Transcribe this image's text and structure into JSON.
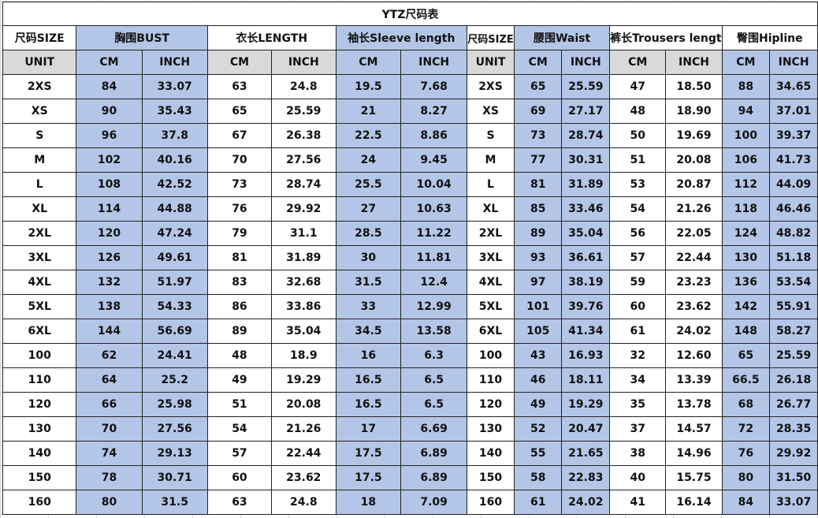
{
  "title": "YTZ尺码表",
  "headers": [
    "尺码SIZE",
    "胸围BUST",
    "衣长LENGTH",
    "袖长Sleeve length",
    "尺码SIZE",
    "腰围Waist",
    "裤长Trousers lengt",
    "臀围Hipline"
  ],
  "units": [
    "UNIT",
    "CM",
    "INCH",
    "CM",
    "INCH",
    "CM",
    "INCH",
    "UNIT",
    "CM",
    "INCH",
    "CM",
    "INCH",
    "CM",
    "INCH"
  ],
  "rows": [
    [
      "2XS",
      "84",
      "33.07",
      "63",
      "24.8",
      "19.5",
      "7.68",
      "2XS",
      "65",
      "25.59",
      "47",
      "18.50",
      "88",
      "34.65"
    ],
    [
      "XS",
      "90",
      "35.43",
      "65",
      "25.59",
      "21",
      "8.27",
      "XS",
      "69",
      "27.17",
      "48",
      "18.90",
      "94",
      "37.01"
    ],
    [
      "S",
      "96",
      "37.8",
      "67",
      "26.38",
      "22.5",
      "8.86",
      "S",
      "73",
      "28.74",
      "50",
      "19.69",
      "100",
      "39.37"
    ],
    [
      "M",
      "102",
      "40.16",
      "70",
      "27.56",
      "24",
      "9.45",
      "M",
      "77",
      "30.31",
      "51",
      "20.08",
      "106",
      "41.73"
    ],
    [
      "L",
      "108",
      "42.52",
      "73",
      "28.74",
      "25.5",
      "10.04",
      "L",
      "81",
      "31.89",
      "53",
      "20.87",
      "112",
      "44.09"
    ],
    [
      "XL",
      "114",
      "44.88",
      "76",
      "29.92",
      "27",
      "10.63",
      "XL",
      "85",
      "33.46",
      "54",
      "21.26",
      "118",
      "46.46"
    ],
    [
      "2XL",
      "120",
      "47.24",
      "79",
      "31.1",
      "28.5",
      "11.22",
      "2XL",
      "89",
      "35.04",
      "56",
      "22.05",
      "124",
      "48.82"
    ],
    [
      "3XL",
      "126",
      "49.61",
      "81",
      "31.89",
      "30",
      "11.81",
      "3XL",
      "93",
      "36.61",
      "57",
      "22.44",
      "130",
      "51.18"
    ],
    [
      "4XL",
      "132",
      "51.97",
      "83",
      "32.68",
      "31.5",
      "12.4",
      "4XL",
      "97",
      "38.19",
      "59",
      "23.23",
      "136",
      "53.54"
    ],
    [
      "5XL",
      "138",
      "54.33",
      "86",
      "33.86",
      "33",
      "12.99",
      "5XL",
      "101",
      "39.76",
      "60",
      "23.62",
      "142",
      "55.91"
    ],
    [
      "6XL",
      "144",
      "56.69",
      "89",
      "35.04",
      "34.5",
      "13.58",
      "6XL",
      "105",
      "41.34",
      "61",
      "24.02",
      "148",
      "58.27"
    ],
    [
      "100",
      "62",
      "24.41",
      "48",
      "18.9",
      "16",
      "6.3",
      "100",
      "43",
      "16.93",
      "32",
      "12.60",
      "65",
      "25.59"
    ],
    [
      "110",
      "64",
      "25.2",
      "49",
      "19.29",
      "16.5",
      "6.5",
      "110",
      "46",
      "18.11",
      "34",
      "13.39",
      "66.5",
      "26.18"
    ],
    [
      "120",
      "66",
      "25.98",
      "51",
      "20.08",
      "16.5",
      "6.5",
      "120",
      "49",
      "19.29",
      "35",
      "13.78",
      "68",
      "26.77"
    ],
    [
      "130",
      "70",
      "27.56",
      "54",
      "21.26",
      "17",
      "6.69",
      "130",
      "52",
      "20.47",
      "37",
      "14.57",
      "72",
      "28.35"
    ],
    [
      "140",
      "74",
      "29.13",
      "57",
      "22.44",
      "17.5",
      "6.89",
      "140",
      "55",
      "21.65",
      "38",
      "14.96",
      "76",
      "29.92"
    ],
    [
      "150",
      "78",
      "30.71",
      "60",
      "23.62",
      "17.5",
      "6.89",
      "150",
      "58",
      "22.83",
      "40",
      "15.75",
      "80",
      "31.50"
    ],
    [
      "160",
      "80",
      "31.5",
      "63",
      "24.8",
      "18",
      "7.09",
      "160",
      "61",
      "24.02",
      "41",
      "16.14",
      "84",
      "33.07"
    ]
  ],
  "colors": {
    "blue": "#b4c6e7",
    "gray": "#d9d9d9"
  }
}
